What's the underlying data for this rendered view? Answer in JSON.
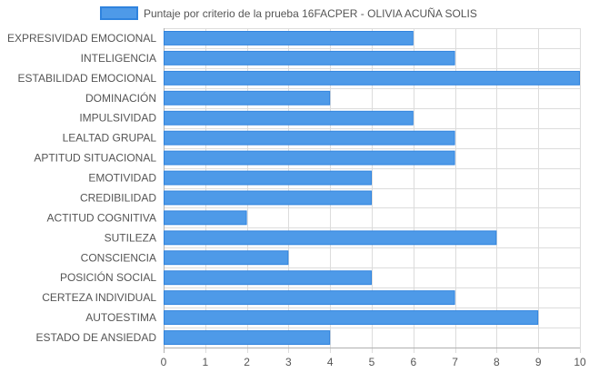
{
  "chart_data": {
    "type": "bar",
    "orientation": "horizontal",
    "categories": [
      "EXPRESIVIDAD EMOCIONAL",
      "INTELIGENCIA",
      "ESTABILIDAD EMOCIONAL",
      "DOMINACIÓN",
      "IMPULSIVIDAD",
      "LEALTAD GRUPAL",
      "APTITUD SITUACIONAL",
      "EMOTIVIDAD",
      "CREDIBILIDAD",
      "ACTITUD COGNITIVA",
      "SUTILEZA",
      "CONSCIENCIA",
      "POSICIÓN SOCIAL",
      "CERTEZA INDIVIDUAL",
      "AUTOESTIMA",
      "ESTADO DE ANSIEDAD"
    ],
    "series": [
      {
        "name": "Puntaje por criterio de la prueba 16FACPER - OLIVIA ACUÑA SOLIS",
        "values": [
          6,
          7,
          10,
          4,
          6,
          7,
          7,
          5,
          5,
          2,
          8,
          3,
          5,
          7,
          9,
          4
        ],
        "color": "#4e9ae8"
      }
    ],
    "xlim": [
      0,
      10
    ],
    "xticks": [
      "0",
      "1",
      "2",
      "3",
      "4",
      "5",
      "6",
      "7",
      "8",
      "9",
      "10"
    ],
    "grid": true,
    "legend_position": "top"
  }
}
